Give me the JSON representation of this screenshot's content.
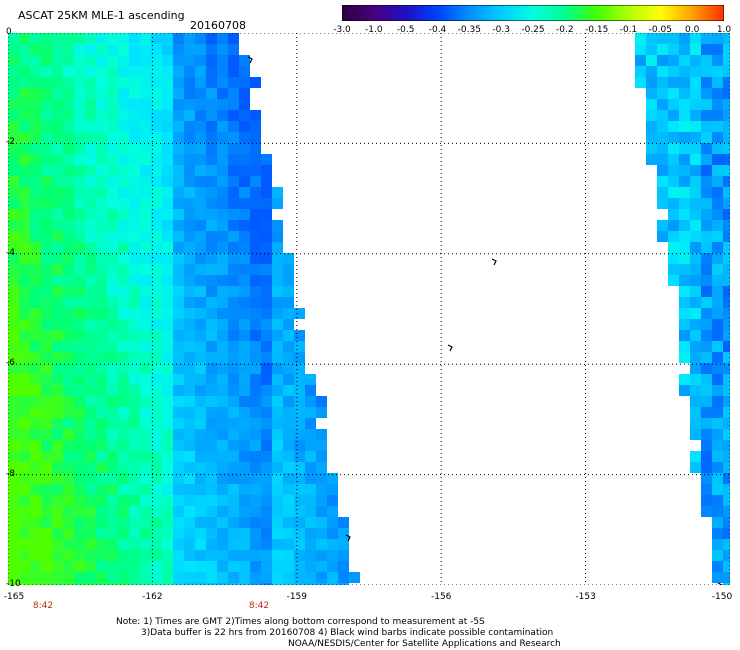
{
  "header": {
    "title": "ASCAT 25KM MLE-1 ascending",
    "date": "20160708"
  },
  "colorbar": {
    "colors": [
      "#2a0040",
      "#4a0080",
      "#2010c0",
      "#0040ff",
      "#0090ff",
      "#00ccff",
      "#00ffe0",
      "#00ff90",
      "#40ff00",
      "#b0ff00",
      "#ffff00",
      "#ffa000",
      "#ff3000"
    ],
    "tick_labels": [
      "-3.0",
      "-1.0",
      "-0.5",
      "-0.4",
      "-0.35",
      "-0.3",
      "-0.25",
      "-0.2",
      "-0.15",
      "-0.1",
      "-0.05",
      "0.0",
      "1.0"
    ]
  },
  "map": {
    "lat_labels": [
      "0",
      "-2",
      "-4",
      "-6",
      "-8",
      "-10"
    ],
    "lon_labels": [
      "-165",
      "-162",
      "-159",
      "-156",
      "-153",
      "-150"
    ],
    "bottom_times": [
      "8:42",
      "8:42"
    ],
    "lon_range": [
      -165,
      -150
    ],
    "lat_range": [
      -10,
      0
    ],
    "grid": true,
    "colors": {
      "land_none": "#ffffff",
      "grid": "#000000"
    }
  },
  "notes": {
    "line1": "Note: 1) Times are GMT 2)Times along bottom correspond to measurement at -5S",
    "line2": "3)Data buffer is 22 hrs from 20160708 4) Black wind barbs indicate possible contamination",
    "line3": "NOAA/NESDIS/Center for Satellite Applications and Research"
  }
}
